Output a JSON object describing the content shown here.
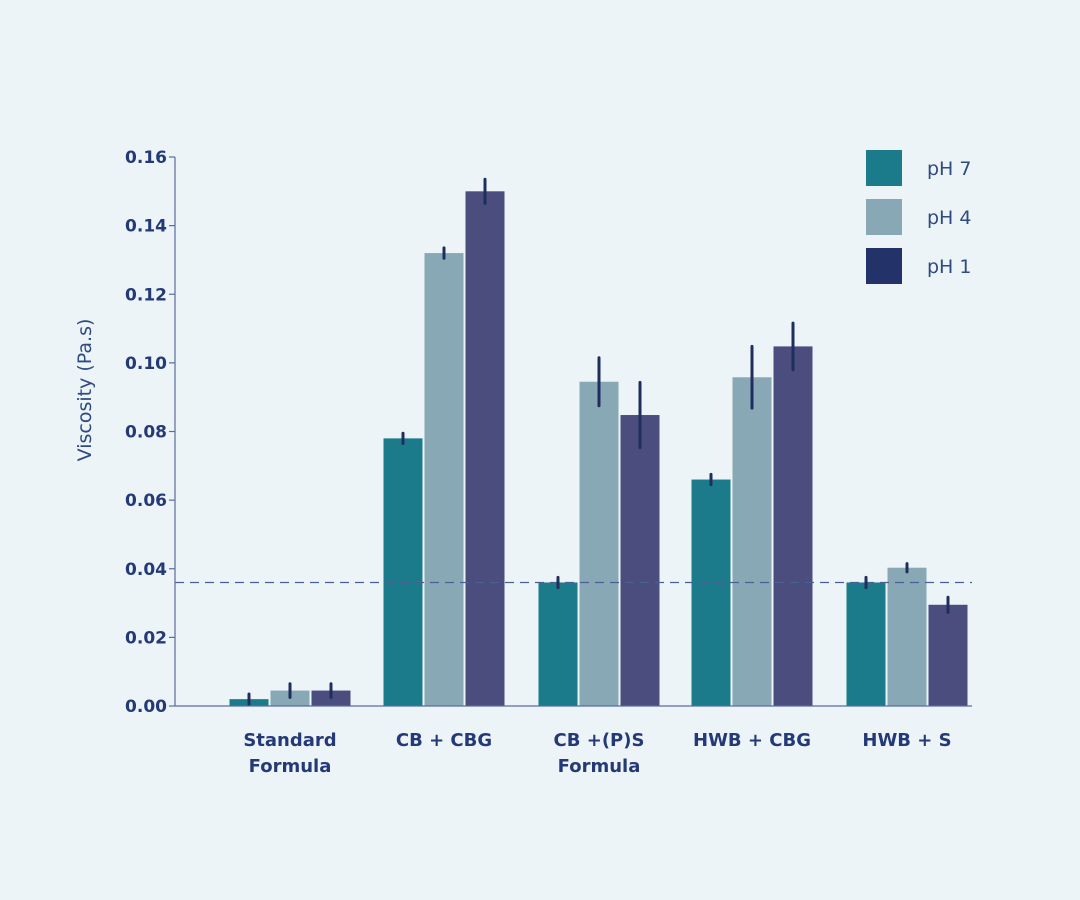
{
  "chart_data": {
    "type": "bar",
    "title": "",
    "xlabel": "",
    "ylabel": "Viscosity (Pa.s)",
    "ylim": [
      0,
      0.16
    ],
    "yticks": [
      "0.00",
      "0.02",
      "0.04",
      "0.06",
      "0.08",
      "0.10",
      "0.12",
      "0.14",
      "0.16"
    ],
    "categories": [
      [
        "Standard",
        "Formula"
      ],
      [
        "CB + CBG"
      ],
      [
        "CB +(P)S",
        "Formula"
      ],
      [
        "HWB + CBG"
      ],
      [
        "HWB + S"
      ]
    ],
    "series": [
      {
        "name": "pH 7",
        "color": "#1c7b8a",
        "legend_color": "#1c7b8a",
        "values": [
          0.002,
          0.078,
          0.036,
          0.066,
          0.036
        ],
        "errors": [
          0.0015,
          0.0015,
          0.0015,
          0.0015,
          0.0015
        ]
      },
      {
        "name": "pH 4",
        "color": "#88a8b5",
        "legend_color": "#88a8b5",
        "values": [
          0.0045,
          0.132,
          0.0945,
          0.0958,
          0.0403
        ],
        "errors": [
          0.002,
          0.0015,
          0.007,
          0.009,
          0.0012
        ]
      },
      {
        "name": "pH 1",
        "color": "#4a4d7d",
        "legend_color": "#23336a",
        "values": [
          0.0045,
          0.15,
          0.0848,
          0.1048,
          0.0295
        ],
        "errors": [
          0.002,
          0.0035,
          0.0095,
          0.0068,
          0.0022
        ]
      }
    ],
    "reference_line": {
      "value": 0.036,
      "style": "dashed",
      "color": "#4a5f96"
    },
    "error_bar_color": "#1f2e5e",
    "legend_position": "top-right",
    "grid": false
  }
}
